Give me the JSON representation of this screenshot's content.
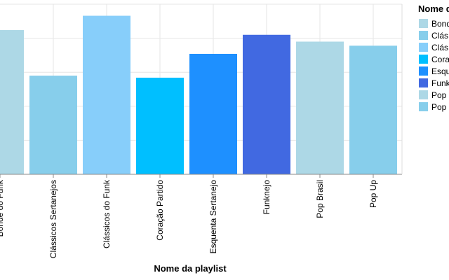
{
  "chart_data": {
    "type": "bar",
    "xlabel": "Nome da playlist",
    "ylabel": "",
    "categories": [
      "Bonde do Funk",
      "Clássicos Sertanejos",
      "Clássicos do Funk",
      "Coração Partido",
      "Esquenta Sertanejo",
      "Funknejo",
      "Pop Brasil",
      "Pop Up"
    ],
    "values": [
      212,
      145,
      233,
      142,
      177,
      205,
      195,
      189
    ],
    "colors": [
      "#add8e6",
      "#87ceeb",
      "#87cefa",
      "#00bfff",
      "#1e90ff",
      "#4169e1",
      "#add8e6",
      "#87ceeb"
    ],
    "ylim": [
      0,
      250
    ],
    "grid": true,
    "legend": {
      "title": "Nome da playlist",
      "title_visible": "Nome d",
      "placement": "right",
      "items": [
        {
          "label": "Bonde do Funk",
          "visible": "Bonde",
          "color": "#add8e6"
        },
        {
          "label": "Clássicos Sertanejos",
          "visible": "Clás",
          "color": "#87ceeb"
        },
        {
          "label": "Clássicos do Funk",
          "visible": "Clás",
          "color": "#87cefa"
        },
        {
          "label": "Coração Partido",
          "visible": "Cora",
          "color": "#00bfff"
        },
        {
          "label": "Esquenta Sertanejo",
          "visible": "Esqu",
          "color": "#1e90ff"
        },
        {
          "label": "Funknejo",
          "visible": "Funk",
          "color": "#4169e1"
        },
        {
          "label": "Pop Brasil",
          "visible": "Pop",
          "color": "#add8e6"
        },
        {
          "label": "Pop Up",
          "visible": "Pop",
          "color": "#87ceeb"
        }
      ]
    }
  }
}
